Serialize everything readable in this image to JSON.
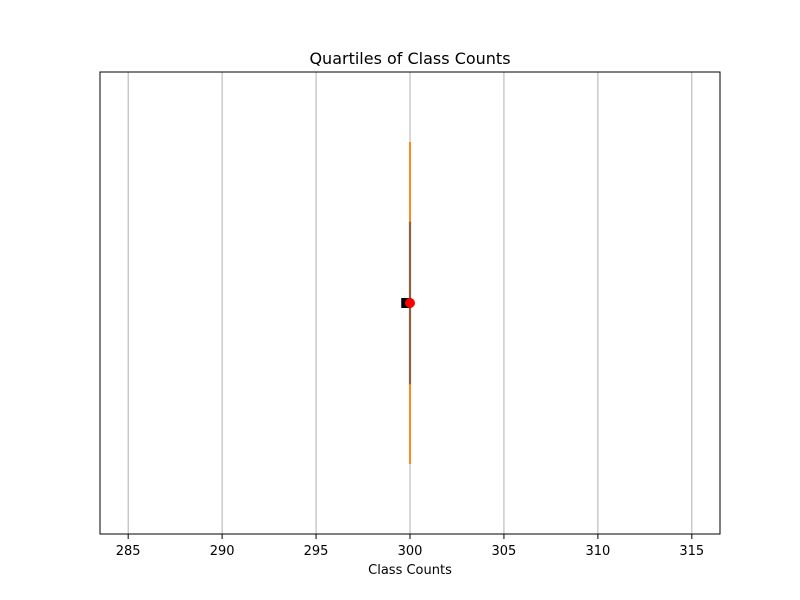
{
  "chart_data": {
    "type": "box",
    "title": "Quartiles of Class Counts",
    "xlabel": "Class Counts",
    "ylabel": "",
    "orientation": "horizontal",
    "xlim": [
      283.5,
      316.5
    ],
    "xticks": [
      285,
      290,
      295,
      300,
      305,
      310,
      315
    ],
    "grid": "x-major",
    "box": {
      "whisker_low": 300,
      "q1": 300,
      "median": 300,
      "q3": 300,
      "whisker_high": 300
    },
    "markers": [
      {
        "shape": "square",
        "value": 299.8
      },
      {
        "shape": "circle",
        "value": 300
      }
    ],
    "colors": {
      "box": "#555555",
      "median": "#ff7f0e",
      "circle_marker": "#ff0000",
      "square_marker": "#000000",
      "grid": "#b0b0b0"
    }
  }
}
